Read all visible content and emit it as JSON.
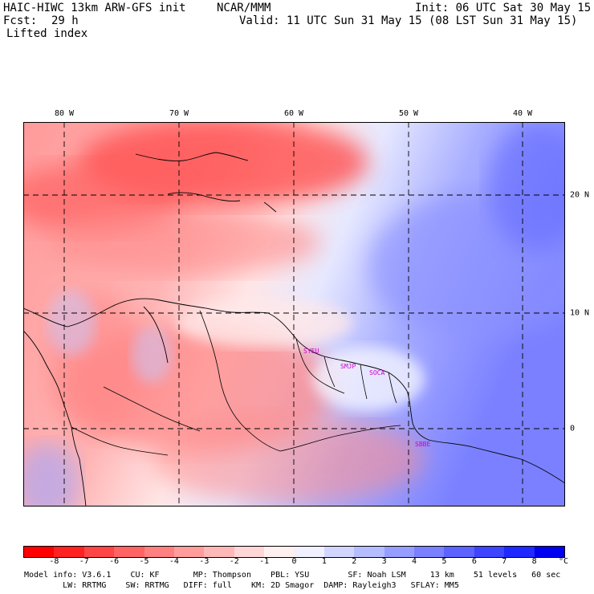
{
  "header": {
    "model": "HAIC-HIWC 13km ARW-GFS init",
    "org": "NCAR/MMM",
    "init": "Init: 06 UTC Sat 30 May 15",
    "fcst_label": "Fcst:",
    "fcst_value": "29 h",
    "valid": "Valid: 11 UTC Sun 31 May 15 (08 LST Sun 31 May 15)",
    "field": "Lifted index"
  },
  "axes": {
    "lon_labels": [
      "80 W",
      "70 W",
      "60 W",
      "50 W",
      "40 W"
    ],
    "lat_labels": [
      "20 N",
      "10 N",
      "0"
    ]
  },
  "sites": [
    "SYEU",
    "SMJP",
    "SOCA",
    "SBBE"
  ],
  "colorbar": {
    "ticks": [
      "-8",
      "-7",
      "-6",
      "-5",
      "-4",
      "-3",
      "-2",
      "-1",
      "0",
      "1",
      "2",
      "3",
      "4",
      "5",
      "6",
      "7",
      "8"
    ],
    "unit": "°C",
    "colors": [
      "#ff0000",
      "#ff2222",
      "#ff4545",
      "#ff6363",
      "#ff8080",
      "#ff9d9d",
      "#ffb8b8",
      "#ffd6d6",
      "#fff0f0",
      "#f0f0ff",
      "#d2d6ff",
      "#b5bcff",
      "#979dff",
      "#7a80ff",
      "#5c63ff",
      "#3d45ff",
      "#1f28ff",
      "#0000f0"
    ]
  },
  "footer": {
    "line1": "Model info: V3.6.1    CU: KF       MP: Thompson    PBL: YSU        SF: Noah LSM     13 km    51 levels   60 sec",
    "line2": "        LW: RRTMG    SW: RRTMG   DIFF: full    KM: 2D Smagor  DAMP: Rayleigh3   SFLAY: MM5"
  }
}
